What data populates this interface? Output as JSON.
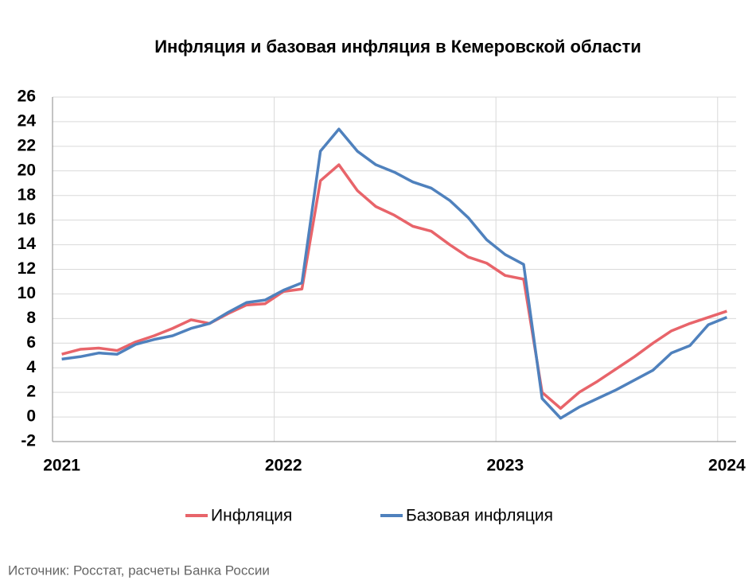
{
  "chart_data": {
    "type": "line",
    "title": "Инфляция и базовая инфляция в Кемеровской области",
    "source": "Источник: Росстат, расчеты Банка России",
    "categories": [
      "2021",
      null,
      null,
      null,
      null,
      null,
      null,
      null,
      null,
      null,
      null,
      null,
      "2022",
      null,
      null,
      null,
      null,
      null,
      null,
      null,
      null,
      null,
      null,
      null,
      "2023",
      null,
      null,
      null,
      null,
      null,
      null,
      null,
      null,
      null,
      null,
      null,
      "2024"
    ],
    "series": [
      {
        "name": "Инфляция",
        "color": "#e8646a",
        "values": [
          5.1,
          5.5,
          5.6,
          5.4,
          6.1,
          6.6,
          7.2,
          7.9,
          7.6,
          8.4,
          9.1,
          9.2,
          10.2,
          10.4,
          19.2,
          20.5,
          18.4,
          17.1,
          16.4,
          15.5,
          15.1,
          14.0,
          13.0,
          12.5,
          11.5,
          11.2,
          2.0,
          0.7,
          2.0,
          2.9,
          3.9,
          4.9,
          6.0,
          7.0,
          7.6,
          8.1,
          8.6
        ]
      },
      {
        "name": "Базовая инфляция",
        "color": "#4f81bd",
        "values": [
          4.7,
          4.9,
          5.2,
          5.1,
          5.9,
          6.3,
          6.6,
          7.2,
          7.6,
          8.5,
          9.3,
          9.5,
          10.3,
          10.9,
          21.6,
          23.4,
          21.6,
          20.5,
          19.9,
          19.1,
          18.6,
          17.6,
          16.2,
          14.4,
          13.2,
          12.4,
          1.5,
          -0.1,
          0.8,
          1.5,
          2.2,
          3.0,
          3.8,
          5.2,
          5.8,
          7.5,
          8.1
        ]
      }
    ],
    "ylim": [
      -2,
      26
    ],
    "yticks": [
      -2,
      0,
      2,
      4,
      6,
      8,
      10,
      12,
      14,
      16,
      18,
      20,
      22,
      24,
      26
    ],
    "grid": true
  }
}
